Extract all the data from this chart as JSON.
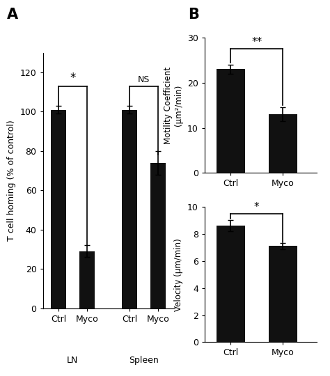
{
  "panel_A": {
    "values": [
      [
        101,
        29
      ],
      [
        101,
        74
      ]
    ],
    "errors": [
      [
        2,
        3
      ],
      [
        2,
        6
      ]
    ],
    "ylabel": "T cell homing (% of control)",
    "ylim": [
      0,
      130
    ],
    "yticks": [
      0,
      20,
      40,
      60,
      80,
      100,
      120
    ],
    "sig_labels": [
      "*",
      "NS"
    ],
    "bar_color": "#111111",
    "bar_width": 0.55
  },
  "panel_B_top": {
    "categories": [
      "Ctrl",
      "Myco"
    ],
    "values": [
      23,
      13
    ],
    "errors": [
      1.0,
      1.5
    ],
    "ylabel": "Motility Coefficient\n(μm²/min)",
    "ylim": [
      0,
      30
    ],
    "yticks": [
      0,
      10,
      20,
      30
    ],
    "sig_label": "**",
    "bar_color": "#111111",
    "bar_width": 0.55
  },
  "panel_B_bottom": {
    "categories": [
      "Ctrl",
      "Myco"
    ],
    "values": [
      8.6,
      7.1
    ],
    "errors": [
      0.4,
      0.25
    ],
    "ylabel": "Velocity (μm/min)",
    "ylim": [
      0,
      10
    ],
    "yticks": [
      0,
      2,
      4,
      6,
      8,
      10
    ],
    "sig_label": "*",
    "bar_color": "#111111",
    "bar_width": 0.55
  },
  "label_A": "A",
  "label_B": "B",
  "background_color": "#ffffff"
}
